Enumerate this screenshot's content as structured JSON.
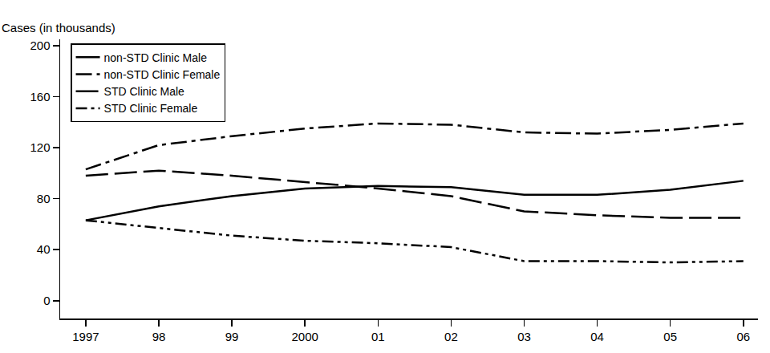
{
  "chart_data": {
    "type": "line",
    "y_label": "Cases (in thousands)",
    "categories": [
      "1997",
      "98",
      "99",
      "2000",
      "01",
      "02",
      "03",
      "04",
      "05",
      "06"
    ],
    "series": [
      {
        "name": "non-STD Clinic Male",
        "color": "#000000",
        "line_style": "solid",
        "values": [
          63,
          74,
          82,
          88,
          90,
          89,
          83,
          83,
          87,
          94
        ]
      },
      {
        "name": "non-STD Clinic Female",
        "color": "#000000",
        "line_style": "dashdot",
        "values": [
          103,
          122,
          129,
          135,
          139,
          138,
          132,
          131,
          134,
          139
        ]
      },
      {
        "name": "STD Clinic Male",
        "color": "#000000",
        "line_style": "longdash",
        "values": [
          98,
          102,
          98,
          93,
          88,
          82,
          70,
          67,
          65,
          65
        ]
      },
      {
        "name": "STD Clinic Female",
        "color": "#000000",
        "line_style": "dashdotdot",
        "values": [
          63,
          57,
          51,
          47,
          45,
          42,
          31,
          31,
          30,
          31
        ]
      }
    ],
    "ylim": [
      -14,
      205
    ],
    "yticks": [
      0,
      40,
      80,
      120,
      160,
      200
    ],
    "grid": false,
    "legend": "upper left"
  }
}
